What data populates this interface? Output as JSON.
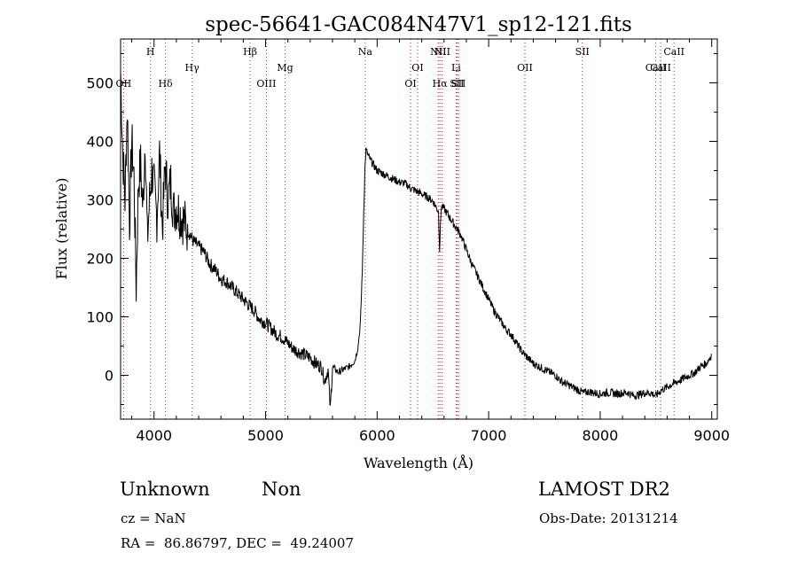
{
  "chart_data": {
    "type": "line",
    "title": "spec-56641-GAC084N47V1_sp12-121.fits",
    "xlabel": "Wavelength (Å)",
    "ylabel": "Flux (relative)",
    "xlim": [
      3700,
      9050
    ],
    "ylim": [
      -75,
      575
    ],
    "x_ticks": [
      4000,
      5000,
      6000,
      7000,
      8000,
      9000
    ],
    "y_ticks": [
      0,
      100,
      200,
      300,
      400,
      500
    ],
    "series": [
      {
        "x": [
          3700,
          3720,
          3740,
          3760,
          3780,
          3800,
          3820,
          3840,
          3860,
          3880,
          3900,
          3920,
          3940,
          3960,
          3980,
          4000,
          4025,
          4050,
          4075,
          4100,
          4125,
          4150,
          4175,
          4200,
          4250,
          4300,
          4350,
          4400,
          4450,
          4500,
          4550,
          4600,
          4650,
          4700,
          4750,
          4800,
          4850,
          4900,
          4950,
          5000,
          5050,
          5100,
          5150,
          5200,
          5250,
          5300,
          5350,
          5400,
          5450,
          5500,
          5530,
          5560,
          5580,
          5600,
          5650,
          5700,
          5750,
          5800,
          5830,
          5850,
          5860,
          5870,
          5880,
          5890,
          5900,
          5920,
          5950,
          6000,
          6050,
          6100,
          6150,
          6200,
          6250,
          6300,
          6350,
          6400,
          6450,
          6500,
          6550,
          6560,
          6575,
          6600,
          6650,
          6700,
          6750,
          6800,
          6850,
          6900,
          6950,
          7000,
          7050,
          7100,
          7150,
          7200,
          7250,
          7300,
          7350,
          7400,
          7450,
          7500,
          7550,
          7600,
          7650,
          7700,
          7750,
          7800,
          7850,
          7900,
          7950,
          8000,
          8050,
          8100,
          8150,
          8200,
          8250,
          8300,
          8350,
          8400,
          8450,
          8500,
          8550,
          8600,
          8650,
          8700,
          8750,
          8800,
          8850,
          8900,
          8950,
          9000
        ],
        "y": [
          520,
          380,
          300,
          460,
          260,
          400,
          340,
          150,
          330,
          360,
          280,
          410,
          230,
          300,
          350,
          320,
          270,
          380,
          250,
          360,
          300,
          330,
          280,
          290,
          270,
          250,
          230,
          220,
          210,
          190,
          180,
          165,
          160,
          150,
          140,
          130,
          120,
          110,
          95,
          90,
          80,
          70,
          65,
          55,
          45,
          40,
          35,
          30,
          20,
          15,
          -10,
          10,
          -60,
          15,
          5,
          10,
          15,
          25,
          50,
          90,
          140,
          200,
          280,
          350,
          385,
          375,
          365,
          350,
          345,
          340,
          335,
          330,
          328,
          320,
          315,
          310,
          305,
          298,
          280,
          215,
          290,
          285,
          270,
          255,
          240,
          215,
          190,
          170,
          150,
          130,
          110,
          95,
          80,
          70,
          55,
          40,
          30,
          20,
          15,
          10,
          5,
          0,
          -10,
          -15,
          -20,
          -25,
          -30,
          -28,
          -30,
          -32,
          -30,
          -30,
          -32,
          -30,
          -30,
          -35,
          -33,
          -30,
          -30,
          -35,
          -25,
          -20,
          -15,
          -10,
          -5,
          0,
          5,
          15,
          20,
          35
        ]
      }
    ],
    "lines": [
      {
        "label": "OII",
        "x": 3727,
        "row": 2
      },
      {
        "label": "H",
        "x": 3968,
        "row": 0
      },
      {
        "label": "Hδ",
        "x": 4102,
        "row": 2
      },
      {
        "label": "Hγ",
        "x": 4341,
        "row": 1
      },
      {
        "label": "Hβ",
        "x": 4861,
        "row": 0
      },
      {
        "label": "OIII",
        "x": 5007,
        "row": 2
      },
      {
        "label": "Mg",
        "x": 5175,
        "row": 1
      },
      {
        "label": "Na",
        "x": 5893,
        "row": 0
      },
      {
        "label": "OI",
        "x": 6300,
        "row": 2
      },
      {
        "label": "OI",
        "x": 6363,
        "row": 1
      },
      {
        "label": "NII",
        "x": 6548,
        "row": 0
      },
      {
        "label": "Hα",
        "x": 6563,
        "row": 2
      },
      {
        "label": "NII",
        "x": 6584,
        "row": 0
      },
      {
        "label": "Li",
        "x": 6708,
        "row": 1
      },
      {
        "label": "SII",
        "x": 6716,
        "row": 2
      },
      {
        "label": "SII",
        "x": 6731,
        "row": 2
      },
      {
        "label": "OII",
        "x": 7325,
        "row": 1
      },
      {
        "label": "SII",
        "x": 7840,
        "row": 0
      },
      {
        "label": "CaII",
        "x": 8498,
        "row": 1
      },
      {
        "label": "CaII",
        "x": 8542,
        "row": 1
      },
      {
        "label": "CaII",
        "x": 8662,
        "row": 0
      }
    ]
  },
  "info": {
    "classification": "Unknown",
    "subclass": "Non",
    "survey": "LAMOST DR2",
    "cz": "cz = NaN",
    "obs_date": "Obs-Date: 20131214",
    "coords": "RA =  86.86797, DEC =  49.24007"
  },
  "colors": {
    "emission_line": "#ff0000",
    "absorption_line": "#555555",
    "spectrum": "#000000"
  }
}
